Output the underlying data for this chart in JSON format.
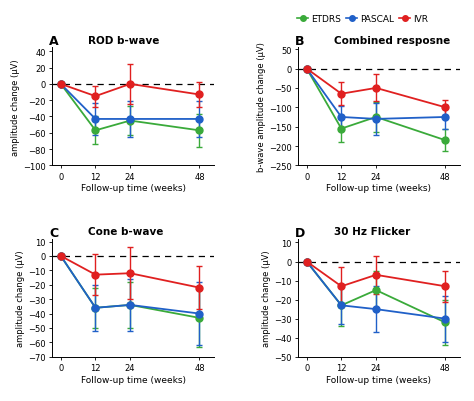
{
  "x": [
    0,
    12,
    24,
    48
  ],
  "panels": [
    {
      "label": "A",
      "title": "ROD b-wave",
      "ylabel": "amplitude change (μV)",
      "ylim": [
        -100,
        45
      ],
      "yticks": [
        -100,
        -80,
        -60,
        -40,
        -20,
        0,
        20,
        40
      ],
      "series": {
        "ETDRS": {
          "color": "#3aaa3a",
          "y": [
            0,
            -57,
            -45,
            -57
          ],
          "yerr": [
            0,
            17,
            18,
            20
          ]
        },
        "PASCAL": {
          "color": "#2060c8",
          "y": [
            0,
            -43,
            -43,
            -43
          ],
          "yerr": [
            0,
            20,
            22,
            22
          ]
        },
        "IVR": {
          "color": "#e02020",
          "y": [
            0,
            -15,
            0,
            -13
          ],
          "yerr": [
            0,
            13,
            25,
            15
          ]
        }
      }
    },
    {
      "label": "B",
      "title": "Combined resposne",
      "ylabel": "b-wave amplitude change (μV)",
      "ylim": [
        -250,
        55
      ],
      "yticks": [
        -250,
        -200,
        -150,
        -100,
        -50,
        0,
        50
      ],
      "series": {
        "ETDRS": {
          "color": "#3aaa3a",
          "y": [
            0,
            -155,
            -125,
            -185
          ],
          "yerr": [
            0,
            35,
            38,
            28
          ]
        },
        "PASCAL": {
          "color": "#2060c8",
          "y": [
            0,
            -125,
            -130,
            -125
          ],
          "yerr": [
            0,
            28,
            42,
            30
          ]
        },
        "IVR": {
          "color": "#e02020",
          "y": [
            0,
            -65,
            -50,
            -100
          ],
          "yerr": [
            0,
            30,
            35,
            20
          ]
        }
      }
    },
    {
      "label": "C",
      "title": "Cone b-wave",
      "ylabel": "amplitude change (μV)",
      "ylim": [
        -70,
        12
      ],
      "yticks": [
        -70,
        -60,
        -50,
        -40,
        -30,
        -20,
        -10,
        0,
        10
      ],
      "series": {
        "ETDRS": {
          "color": "#3aaa3a",
          "y": [
            0,
            -36,
            -34,
            -43
          ],
          "yerr": [
            0,
            14,
            16,
            20
          ]
        },
        "PASCAL": {
          "color": "#2060c8",
          "y": [
            0,
            -36,
            -34,
            -40
          ],
          "yerr": [
            0,
            16,
            18,
            22
          ]
        },
        "IVR": {
          "color": "#e02020",
          "y": [
            0,
            -13,
            -12,
            -22
          ],
          "yerr": [
            0,
            14,
            18,
            15
          ]
        }
      }
    },
    {
      "label": "D",
      "title": "30 Hz Flicker",
      "ylabel": "amplitude change (μV)",
      "ylim": [
        -50,
        12
      ],
      "yticks": [
        -50,
        -40,
        -30,
        -20,
        -10,
        0,
        10
      ],
      "series": {
        "ETDRS": {
          "color": "#3aaa3a",
          "y": [
            0,
            -23,
            -15,
            -32
          ],
          "yerr": [
            0,
            11,
            10,
            12
          ]
        },
        "PASCAL": {
          "color": "#2060c8",
          "y": [
            0,
            -23,
            -25,
            -30
          ],
          "yerr": [
            0,
            10,
            12,
            12
          ]
        },
        "IVR": {
          "color": "#e02020",
          "y": [
            0,
            -13,
            -7,
            -13
          ],
          "yerr": [
            0,
            10,
            10,
            8
          ]
        }
      }
    }
  ],
  "legend_order": [
    "ETDRS",
    "PASCAL",
    "IVR"
  ],
  "legend_colors": [
    "#3aaa3a",
    "#2060c8",
    "#e02020"
  ],
  "xlabel": "Follow-up time (weeks)",
  "xticks": [
    0,
    12,
    24,
    48
  ],
  "background_color": "#ffffff",
  "marker_size": 5,
  "line_width": 1.3,
  "cap_size": 2.5,
  "elinewidth": 1.0
}
